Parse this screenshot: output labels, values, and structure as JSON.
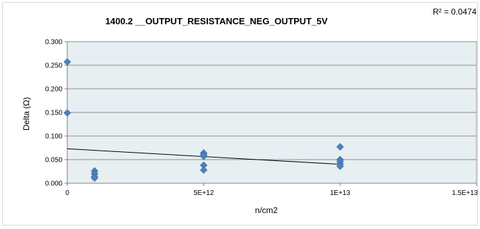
{
  "chart_data": {
    "type": "scatter",
    "title": "1400.2 __OUTPUT_RESISTANCE_NEG_OUTPUT_5V",
    "xlabel": "n/cm2",
    "ylabel": "Delta (Ω)",
    "xlim": [
      0,
      15000000000000
    ],
    "ylim": [
      0,
      0.3
    ],
    "x_ticks": [
      0,
      5000000000000,
      10000000000000,
      15000000000000
    ],
    "x_tick_labels": [
      "0",
      "5E+12",
      "1E+13",
      "1.5E+13"
    ],
    "y_ticks": [
      0,
      0.05,
      0.1,
      0.15,
      0.2,
      0.25,
      0.3
    ],
    "y_tick_labels": [
      "0.000",
      "0.050",
      "0.100",
      "0.150",
      "0.200",
      "0.250",
      "0.300"
    ],
    "grid": true,
    "marker_color": "#4f81bd",
    "plot_background": "#e8eff2",
    "series": [
      {
        "x": [
          0,
          0,
          1000000000000,
          1000000000000,
          1000000000000,
          1000000000000,
          5000000000000,
          5000000000000,
          5000000000000,
          5000000000000,
          5000000000000,
          10000000000000,
          10000000000000,
          10000000000000,
          10000000000000,
          10000000000000
        ],
        "y": [
          0.257,
          0.149,
          0.026,
          0.02,
          0.014,
          0.011,
          0.064,
          0.06,
          0.057,
          0.038,
          0.028,
          0.077,
          0.05,
          0.046,
          0.041,
          0.036
        ]
      }
    ],
    "trendline": {
      "type": "linear",
      "x": [
        0,
        10000000000000
      ],
      "y": [
        0.073,
        0.04
      ]
    },
    "r_squared_label": "R² = 0.0474"
  }
}
